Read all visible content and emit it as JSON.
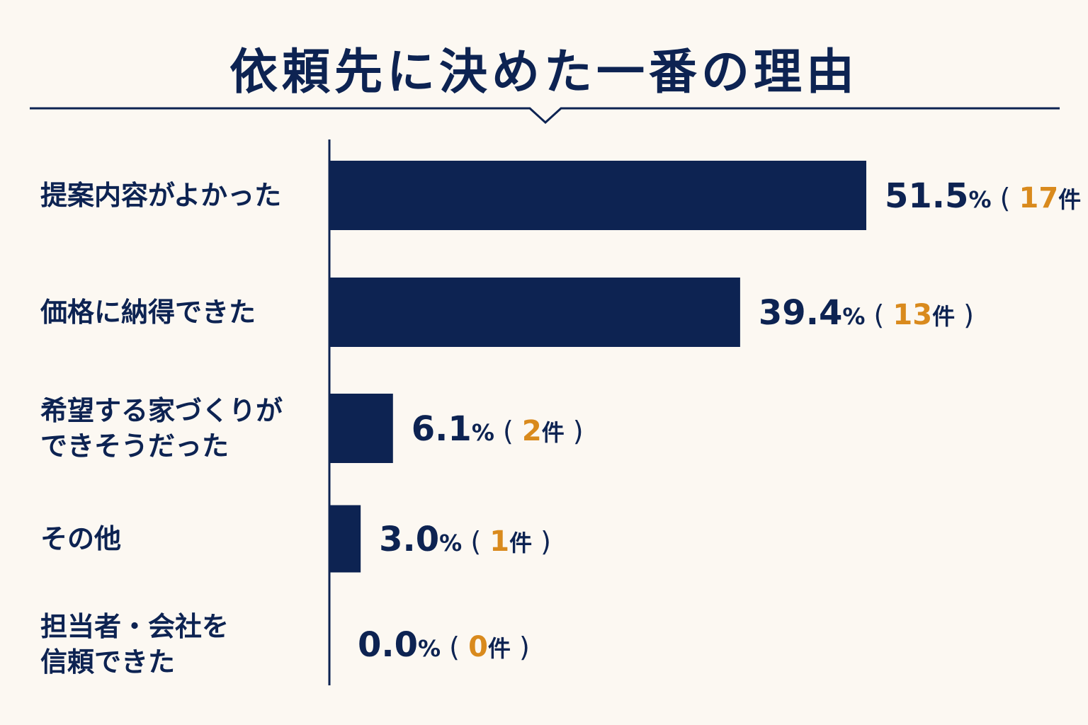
{
  "chart_data": {
    "type": "bar",
    "orientation": "horizontal",
    "title": "依頼先に決めた一番の理由",
    "categories": [
      [
        "提案内容がよかった"
      ],
      [
        "価格に納得できた"
      ],
      [
        "希望する家づくりが",
        "できそうだった"
      ],
      [
        "その他"
      ],
      [
        "担当者・会社を",
        "信頼できた"
      ]
    ],
    "values": [
      51.5,
      39.4,
      6.1,
      3.0,
      0.0
    ],
    "value_labels": [
      "51.5",
      "39.4",
      "6.1",
      "3.0",
      "0.0"
    ],
    "counts": [
      "17",
      "13",
      "2",
      "1",
      "0"
    ],
    "percent_symbol": "%",
    "count_unit": "件",
    "paren_open": "(",
    "paren_close": ")",
    "xlim": [
      0,
      51.5
    ],
    "grid": false,
    "legend": "none"
  },
  "colors": {
    "bar": "#0d2352",
    "text": "#0d2352",
    "count_accent": "#d98a1d",
    "background": "#fcf8f2"
  }
}
